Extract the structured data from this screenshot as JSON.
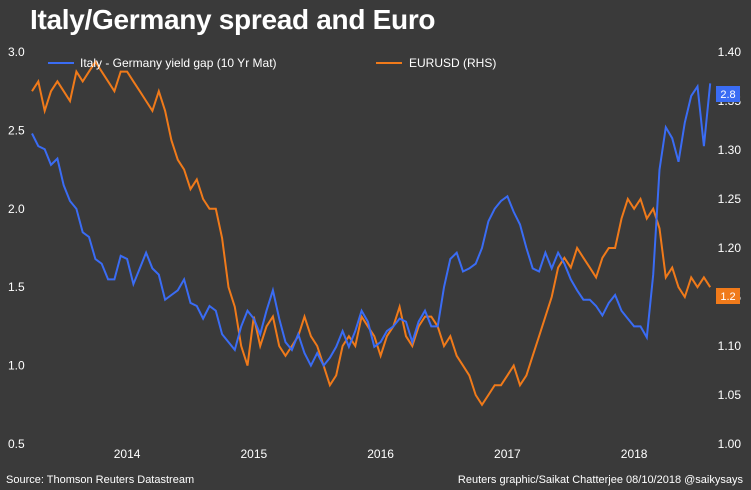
{
  "title": "Italy/Germany spread and Euro",
  "source": "Source: Thomson Reuters Datastream",
  "credit": "Reuters graphic/Saikat Chatterjee 08/10/2018 @saikysays",
  "colors": {
    "background": "#3a3a3a",
    "spread": "#3a6cf4",
    "eurusd": "#f07a1a"
  },
  "chart_data": {
    "type": "line",
    "title": "Italy/Germany spread and Euro",
    "x_ticks": [
      "2014",
      "2015",
      "2016",
      "2017",
      "2018"
    ],
    "x_range": [
      2013.25,
      2018.63
    ],
    "left_axis": {
      "ticks": [
        "3.0",
        "2.5",
        "2.0",
        "1.5",
        "1.0",
        "0.5"
      ],
      "range": [
        0.5,
        3.0
      ]
    },
    "right_axis": {
      "ticks": [
        "1.40",
        "1.35",
        "1.30",
        "1.25",
        "1.20",
        "1.15",
        "1.10",
        "1.05",
        "1.00"
      ],
      "range": [
        1.0,
        1.4
      ]
    },
    "legend_position": "top",
    "grid": false,
    "series": [
      {
        "name": "Italy - Germany yield gap (10 Yr Mat)",
        "axis": "left",
        "color": "#3a6cf4",
        "last_value_label": "2.8",
        "x": [
          2013.25,
          2013.3,
          2013.35,
          2013.4,
          2013.45,
          2013.5,
          2013.55,
          2013.6,
          2013.65,
          2013.7,
          2013.75,
          2013.8,
          2013.85,
          2013.9,
          2013.95,
          2014.0,
          2014.05,
          2014.1,
          2014.15,
          2014.2,
          2014.25,
          2014.3,
          2014.35,
          2014.4,
          2014.45,
          2014.5,
          2014.55,
          2014.6,
          2014.65,
          2014.7,
          2014.75,
          2014.8,
          2014.85,
          2014.9,
          2014.95,
          2015.0,
          2015.05,
          2015.1,
          2015.15,
          2015.2,
          2015.25,
          2015.3,
          2015.35,
          2015.4,
          2015.45,
          2015.5,
          2015.55,
          2015.6,
          2015.65,
          2015.7,
          2015.75,
          2015.8,
          2015.85,
          2015.9,
          2015.95,
          2016.0,
          2016.05,
          2016.1,
          2016.15,
          2016.2,
          2016.25,
          2016.3,
          2016.35,
          2016.4,
          2016.45,
          2016.5,
          2016.55,
          2016.6,
          2016.65,
          2016.7,
          2016.75,
          2016.8,
          2016.85,
          2016.9,
          2016.95,
          2017.0,
          2017.05,
          2017.1,
          2017.15,
          2017.2,
          2017.25,
          2017.3,
          2017.35,
          2017.4,
          2017.45,
          2017.5,
          2017.55,
          2017.6,
          2017.65,
          2017.7,
          2017.75,
          2017.8,
          2017.85,
          2017.9,
          2017.95,
          2018.0,
          2018.05,
          2018.1,
          2018.15,
          2018.2,
          2018.25,
          2018.3,
          2018.35,
          2018.4,
          2018.45,
          2018.5,
          2018.55,
          2018.6
        ],
        "values": [
          2.48,
          2.4,
          2.38,
          2.28,
          2.32,
          2.15,
          2.05,
          2.0,
          1.85,
          1.82,
          1.68,
          1.65,
          1.55,
          1.55,
          1.7,
          1.68,
          1.52,
          1.62,
          1.72,
          1.62,
          1.58,
          1.42,
          1.45,
          1.48,
          1.55,
          1.4,
          1.38,
          1.3,
          1.38,
          1.35,
          1.2,
          1.15,
          1.1,
          1.25,
          1.35,
          1.3,
          1.2,
          1.35,
          1.48,
          1.3,
          1.15,
          1.1,
          1.2,
          1.08,
          1.0,
          1.08,
          1.0,
          1.05,
          1.12,
          1.22,
          1.12,
          1.22,
          1.35,
          1.28,
          1.12,
          1.15,
          1.22,
          1.25,
          1.3,
          1.28,
          1.15,
          1.28,
          1.35,
          1.25,
          1.25,
          1.5,
          1.68,
          1.72,
          1.6,
          1.62,
          1.65,
          1.75,
          1.92,
          2.0,
          2.05,
          2.08,
          1.98,
          1.9,
          1.75,
          1.62,
          1.6,
          1.72,
          1.62,
          1.72,
          1.65,
          1.55,
          1.48,
          1.42,
          1.42,
          1.38,
          1.32,
          1.4,
          1.45,
          1.35,
          1.3,
          1.25,
          1.25,
          1.18,
          1.58,
          2.25,
          2.52,
          2.45,
          2.3,
          2.55,
          2.72,
          2.78,
          2.4,
          2.8
        ]
      },
      {
        "name": "EURUSD (RHS)",
        "axis": "right",
        "color": "#f07a1a",
        "last_value_label": "1.2",
        "x": [
          2013.25,
          2013.3,
          2013.35,
          2013.4,
          2013.45,
          2013.5,
          2013.55,
          2013.6,
          2013.65,
          2013.7,
          2013.75,
          2013.8,
          2013.85,
          2013.9,
          2013.95,
          2014.0,
          2014.05,
          2014.1,
          2014.15,
          2014.2,
          2014.25,
          2014.3,
          2014.35,
          2014.4,
          2014.45,
          2014.5,
          2014.55,
          2014.6,
          2014.65,
          2014.7,
          2014.75,
          2014.8,
          2014.85,
          2014.9,
          2014.95,
          2015.0,
          2015.05,
          2015.1,
          2015.15,
          2015.2,
          2015.25,
          2015.3,
          2015.35,
          2015.4,
          2015.45,
          2015.5,
          2015.55,
          2015.6,
          2015.65,
          2015.7,
          2015.75,
          2015.8,
          2015.85,
          2015.9,
          2015.95,
          2016.0,
          2016.05,
          2016.1,
          2016.15,
          2016.2,
          2016.25,
          2016.3,
          2016.35,
          2016.4,
          2016.45,
          2016.5,
          2016.55,
          2016.6,
          2016.65,
          2016.7,
          2016.75,
          2016.8,
          2016.85,
          2016.9,
          2016.95,
          2017.0,
          2017.05,
          2017.1,
          2017.15,
          2017.2,
          2017.25,
          2017.3,
          2017.35,
          2017.4,
          2017.45,
          2017.5,
          2017.55,
          2017.6,
          2017.65,
          2017.7,
          2017.75,
          2017.8,
          2017.85,
          2017.9,
          2017.95,
          2018.0,
          2018.05,
          2018.1,
          2018.15,
          2018.2,
          2018.25,
          2018.3,
          2018.35,
          2018.4,
          2018.45,
          2018.5,
          2018.55,
          2018.6
        ],
        "values": [
          1.36,
          1.37,
          1.34,
          1.36,
          1.37,
          1.36,
          1.35,
          1.38,
          1.37,
          1.38,
          1.39,
          1.38,
          1.37,
          1.36,
          1.38,
          1.38,
          1.37,
          1.36,
          1.35,
          1.34,
          1.36,
          1.34,
          1.31,
          1.29,
          1.28,
          1.26,
          1.27,
          1.25,
          1.24,
          1.24,
          1.21,
          1.16,
          1.14,
          1.1,
          1.08,
          1.13,
          1.1,
          1.12,
          1.13,
          1.1,
          1.09,
          1.1,
          1.11,
          1.13,
          1.11,
          1.1,
          1.08,
          1.06,
          1.07,
          1.1,
          1.11,
          1.1,
          1.13,
          1.12,
          1.11,
          1.09,
          1.11,
          1.12,
          1.14,
          1.11,
          1.1,
          1.12,
          1.13,
          1.13,
          1.12,
          1.1,
          1.11,
          1.09,
          1.08,
          1.07,
          1.05,
          1.04,
          1.05,
          1.06,
          1.06,
          1.07,
          1.08,
          1.06,
          1.07,
          1.09,
          1.11,
          1.13,
          1.15,
          1.18,
          1.19,
          1.18,
          1.2,
          1.19,
          1.18,
          1.17,
          1.19,
          1.2,
          1.2,
          1.23,
          1.25,
          1.24,
          1.25,
          1.23,
          1.24,
          1.22,
          1.17,
          1.18,
          1.16,
          1.15,
          1.17,
          1.16,
          1.17,
          1.16
        ]
      }
    ]
  }
}
